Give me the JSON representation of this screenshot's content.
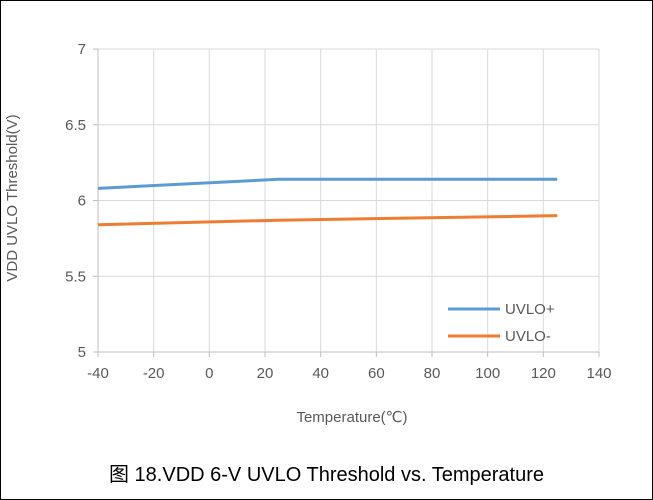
{
  "chart_data": {
    "type": "line",
    "title": "",
    "xlabel": "Temperature(℃)",
    "ylabel": "VDD UVLO Threshold(V)",
    "xlim": [
      -40,
      140
    ],
    "ylim": [
      5,
      7
    ],
    "xticks": [
      -40,
      -20,
      0,
      20,
      40,
      60,
      80,
      100,
      120,
      140
    ],
    "yticks": [
      5,
      5.5,
      6,
      6.5,
      7
    ],
    "xtick_labels": [
      "-40",
      "-20",
      "0",
      "20",
      "40",
      "60",
      "80",
      "100",
      "120",
      "140"
    ],
    "ytick_labels": [
      "5",
      "5.5",
      "6",
      "6.5",
      "7"
    ],
    "grid": true,
    "legend_position": "bottom-right",
    "series": [
      {
        "name": "UVLO+",
        "color": "#5B9BD5",
        "x": [
          -40,
          25,
          125
        ],
        "y": [
          6.08,
          6.14,
          6.14
        ]
      },
      {
        "name": "UVLO-",
        "color": "#ED7D31",
        "x": [
          -40,
          25,
          125
        ],
        "y": [
          5.84,
          5.87,
          5.9
        ]
      }
    ]
  },
  "caption": "图 18.VDD 6-V UVLO Threshold vs. Temperature"
}
